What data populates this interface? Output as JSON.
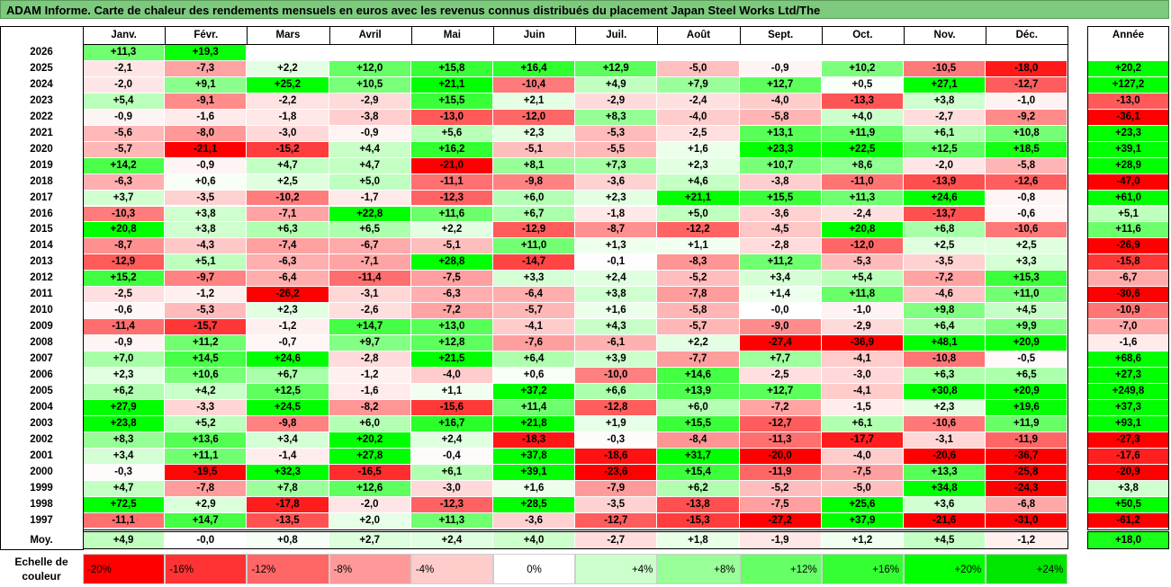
{
  "title": "ADAM Informe. Carte de chaleur des rendements mensuels en euros avec les revenus connus distribués du placement Japan Steel Works Ltd/The",
  "chart_data": {
    "type": "heatmap",
    "months": [
      "Janv.",
      "Févr.",
      "Mars",
      "Avril",
      "Mai",
      "Juin",
      "Juil.",
      "Août",
      "Sept.",
      "Oct.",
      "Nov.",
      "Déc."
    ],
    "annual_header": "Année",
    "rows": [
      {
        "year": "2026",
        "values": [
          "+11,3",
          "+19,3",
          "",
          "",
          "",
          "",
          "",
          "",
          "",
          "",
          "",
          ""
        ],
        "annual": ""
      },
      {
        "year": "2025",
        "values": [
          "-2,1",
          "-7,3",
          "+2,2",
          "+12,0",
          "+15,8",
          "+16,4",
          "+12,9",
          "-5,0",
          "-0,9",
          "+10,2",
          "-10,5",
          "-18,0"
        ],
        "annual": "+20,2"
      },
      {
        "year": "2024",
        "values": [
          "-2,0",
          "+9,1",
          "+25,2",
          "+10,5",
          "+21,1",
          "-10,4",
          "+4,9",
          "+7,9",
          "+12,7",
          "+0,5",
          "+27,1",
          "-12,7"
        ],
        "annual": "+127,2"
      },
      {
        "year": "2023",
        "values": [
          "+5,4",
          "-9,1",
          "-2,2",
          "-2,9",
          "+15,5",
          "+2,1",
          "-2,9",
          "-2,4",
          "-4,0",
          "-13,3",
          "+3,8",
          "-1,0"
        ],
        "annual": "-13,0"
      },
      {
        "year": "2022",
        "values": [
          "-0,9",
          "-1,6",
          "-1,8",
          "-3,8",
          "-13,0",
          "-12,0",
          "+8,3",
          "-4,0",
          "-5,8",
          "+4,0",
          "-2,7",
          "-9,2"
        ],
        "annual": "-36,1"
      },
      {
        "year": "2021",
        "values": [
          "-5,6",
          "-8,0",
          "-3,0",
          "-0,9",
          "+5,6",
          "+2,3",
          "-5,3",
          "-2,5",
          "+13,1",
          "+11,9",
          "+6,1",
          "+10,8"
        ],
        "annual": "+23,3"
      },
      {
        "year": "2020",
        "values": [
          "-5,7",
          "-21,1",
          "-15,2",
          "+4,4",
          "+16,2",
          "-5,1",
          "-5,5",
          "+1,6",
          "+23,3",
          "+22,5",
          "+12,5",
          "+18,5"
        ],
        "annual": "+39,1"
      },
      {
        "year": "2019",
        "values": [
          "+14,2",
          "-0,9",
          "+4,7",
          "+4,7",
          "-21,0",
          "+8,1",
          "+7,3",
          "+2,3",
          "+10,7",
          "+8,6",
          "-2,0",
          "-5,8"
        ],
        "annual": "+28,9"
      },
      {
        "year": "2018",
        "values": [
          "-6,3",
          "+0,6",
          "+2,5",
          "+5,0",
          "-11,1",
          "-9,8",
          "-3,6",
          "+4,6",
          "-3,8",
          "-11,0",
          "-13,9",
          "-12,6"
        ],
        "annual": "-47,0"
      },
      {
        "year": "2017",
        "values": [
          "+3,7",
          "-3,5",
          "-10,2",
          "-1,7",
          "-12,3",
          "+6,0",
          "+2,3",
          "+21,1",
          "+15,5",
          "+11,3",
          "+24,6",
          "-0,8"
        ],
        "annual": "+61,0"
      },
      {
        "year": "2016",
        "values": [
          "-10,3",
          "+3,8",
          "-7,1",
          "+22,8",
          "+11,6",
          "+6,7",
          "-1,8",
          "+5,0",
          "-3,6",
          "-2,4",
          "-13,7",
          "-0,6"
        ],
        "annual": "+5,1"
      },
      {
        "year": "2015",
        "values": [
          "+20,8",
          "+3,8",
          "+6,3",
          "+6,5",
          "+2,2",
          "-12,9",
          "-8,7",
          "-12,2",
          "-4,5",
          "+20,8",
          "+6,8",
          "-10,6"
        ],
        "annual": "+11,6"
      },
      {
        "year": "2014",
        "values": [
          "-8,7",
          "-4,3",
          "-7,4",
          "-6,7",
          "-5,1",
          "+11,0",
          "+1,3",
          "+1,1",
          "-2,8",
          "-12,0",
          "+2,5",
          "+2,5"
        ],
        "annual": "-26,9"
      },
      {
        "year": "2013",
        "values": [
          "-12,9",
          "+5,1",
          "-6,3",
          "-7,1",
          "+28,8",
          "-14,7",
          "-0,1",
          "-8,3",
          "+11,2",
          "-5,3",
          "-3,5",
          "+3,3"
        ],
        "annual": "-15,8"
      },
      {
        "year": "2012",
        "values": [
          "+15,2",
          "-9,7",
          "-6,4",
          "-11,4",
          "-7,5",
          "+3,3",
          "+2,4",
          "-5,2",
          "+3,4",
          "+5,4",
          "-7,2",
          "+15,3"
        ],
        "annual": "-6,7"
      },
      {
        "year": "2011",
        "values": [
          "-2,5",
          "-1,2",
          "-26,2",
          "-3,1",
          "-6,3",
          "-6,4",
          "+3,8",
          "-7,8",
          "+1,4",
          "+11,8",
          "-4,6",
          "+11,0"
        ],
        "annual": "-30,6"
      },
      {
        "year": "2010",
        "values": [
          "-0,6",
          "-5,3",
          "+2,3",
          "-2,6",
          "-7,2",
          "-5,7",
          "+1,6",
          "-5,8",
          "-0,0",
          "-1,0",
          "+9,8",
          "+4,5"
        ],
        "annual": "-10,9"
      },
      {
        "year": "2009",
        "values": [
          "-11,4",
          "-15,7",
          "-1,2",
          "+14,7",
          "+13,0",
          "-4,1",
          "+4,3",
          "-5,7",
          "-9,0",
          "-2,9",
          "+6,4",
          "+9,9"
        ],
        "annual": "-7,0"
      },
      {
        "year": "2008",
        "values": [
          "-0,9",
          "+11,2",
          "-0,7",
          "+9,7",
          "+12,8",
          "-7,6",
          "-6,1",
          "+2,2",
          "-27,4",
          "-36,9",
          "+48,1",
          "+20,9"
        ],
        "annual": "-1,6"
      },
      {
        "year": "2007",
        "values": [
          "+7,0",
          "+14,5",
          "+24,6",
          "-2,8",
          "+21,5",
          "+6,4",
          "+3,9",
          "-7,7",
          "+7,7",
          "-4,1",
          "-10,8",
          "-0,5"
        ],
        "annual": "+68,6"
      },
      {
        "year": "2006",
        "values": [
          "+2,3",
          "+10,6",
          "+6,7",
          "-1,2",
          "-4,0",
          "+0,6",
          "-10,0",
          "+14,6",
          "-2,5",
          "-3,0",
          "+6,3",
          "+6,5"
        ],
        "annual": "+27,3"
      },
      {
        "year": "2005",
        "values": [
          "+6,2",
          "+4,2",
          "+12,5",
          "-1,6",
          "+1,1",
          "+37,2",
          "+6,6",
          "+13,9",
          "+12,7",
          "-4,1",
          "+30,8",
          "+20,9"
        ],
        "annual": "+249,8"
      },
      {
        "year": "2004",
        "values": [
          "+27,9",
          "-3,3",
          "+24,5",
          "-8,2",
          "-15,6",
          "+11,4",
          "-12,8",
          "+6,0",
          "-7,2",
          "-1,5",
          "+2,3",
          "+19,6"
        ],
        "annual": "+37,3"
      },
      {
        "year": "2003",
        "values": [
          "+23,8",
          "+5,2",
          "-9,8",
          "+6,0",
          "+16,7",
          "+21,8",
          "+1,9",
          "+15,5",
          "-12,7",
          "+6,1",
          "-10,6",
          "+11,9"
        ],
        "annual": "+93,1"
      },
      {
        "year": "2002",
        "values": [
          "+8,3",
          "+13,6",
          "+3,4",
          "+20,2",
          "+2,4",
          "-18,3",
          "-0,3",
          "-8,4",
          "-11,3",
          "-17,7",
          "-3,1",
          "-11,9"
        ],
        "annual": "-27,3"
      },
      {
        "year": "2001",
        "values": [
          "+3,4",
          "+11,1",
          "-1,4",
          "+27,8",
          "-0,4",
          "+37,8",
          "-18,6",
          "+31,7",
          "-20,0",
          "-4,0",
          "-20,6",
          "-36,7"
        ],
        "annual": "-17,6"
      },
      {
        "year": "2000",
        "values": [
          "-0,3",
          "-19,5",
          "+32,3",
          "-16,5",
          "+6,1",
          "+39,1",
          "-23,6",
          "+15,4",
          "-11,9",
          "-7,5",
          "+13,3",
          "-25,8"
        ],
        "annual": "-20,9"
      },
      {
        "year": "1999",
        "values": [
          "+4,7",
          "-7,8",
          "+7,8",
          "+12,6",
          "-3,0",
          "+1,6",
          "-7,9",
          "+6,2",
          "-5,2",
          "-5,0",
          "+34,8",
          "-24,3"
        ],
        "annual": "+3,8"
      },
      {
        "year": "1998",
        "values": [
          "+72,5",
          "+2,9",
          "-17,8",
          "-2,0",
          "-12,3",
          "+28,5",
          "-3,5",
          "-13,8",
          "-7,5",
          "+25,6",
          "+3,6",
          "-6,8"
        ],
        "annual": "+50,5"
      },
      {
        "year": "1997",
        "values": [
          "-11,1",
          "+14,7",
          "-13,5",
          "+2,0",
          "+11,3",
          "-3,6",
          "-12,7",
          "-15,3",
          "-27,2",
          "+37,9",
          "-21,6",
          "-31,0"
        ],
        "annual": "-61,2"
      }
    ],
    "average": {
      "label": "Moy.",
      "values": [
        "+4,9",
        "-0,0",
        "+0,8",
        "+2,7",
        "+2,4",
        "+4,0",
        "-2,7",
        "+1,8",
        "-1,9",
        "+1,2",
        "+4,5",
        "-1,2"
      ],
      "annual": "+18,0"
    },
    "scale": {
      "label_line1": "Echelle de",
      "label_line2": "couleur",
      "steps": [
        {
          "label": "-20%",
          "value": -20,
          "color": "#ff0000"
        },
        {
          "label": "-16%",
          "value": -16,
          "color": "#ff3333"
        },
        {
          "label": "-12%",
          "value": -12,
          "color": "#ff6666"
        },
        {
          "label": "-8%",
          "value": -8,
          "color": "#ff9999"
        },
        {
          "label": "-4%",
          "value": -4,
          "color": "#ffcccc"
        },
        {
          "label": "0%",
          "value": 0,
          "color": "#ffffff"
        },
        {
          "label": "+4%",
          "value": 4,
          "color": "#ccffcc"
        },
        {
          "label": "+8%",
          "value": 8,
          "color": "#99ff99"
        },
        {
          "label": "+12%",
          "value": 12,
          "color": "#66ff66"
        },
        {
          "label": "+16%",
          "value": 16,
          "color": "#33ff33"
        },
        {
          "label": "+20%",
          "value": 20,
          "color": "#00ff00"
        },
        {
          "label": "+24%",
          "value": 24,
          "color": "#00e600"
        }
      ]
    }
  }
}
